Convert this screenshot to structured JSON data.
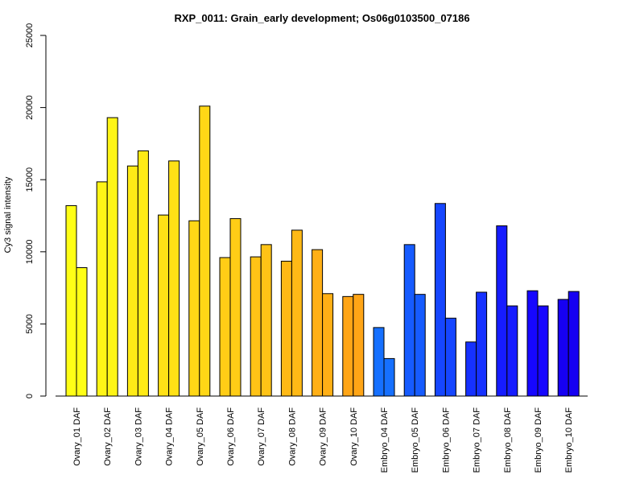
{
  "chart_data": {
    "type": "bar",
    "title": "RXP_0011: Grain_early development; Os06g0103500_07186",
    "xlabel": "",
    "ylabel": "Cy3 signal intensity",
    "ylim": [
      0,
      25000
    ],
    "yticks": [
      0,
      5000,
      10000,
      15000,
      20000,
      25000
    ],
    "grid": false,
    "categories": [
      "Ovary_01 DAF",
      "Ovary_02 DAF",
      "Ovary_03 DAF",
      "Ovary_04 DAF",
      "Ovary_05 DAF",
      "Ovary_06 DAF",
      "Ovary_07 DAF",
      "Ovary_08 DAF",
      "Ovary_09 DAF",
      "Ovary_10 DAF",
      "Embryo_04 DAF",
      "Embryo_05 DAF",
      "Embryo_06 DAF",
      "Embryo_07 DAF",
      "Embryo_08 DAF",
      "Embryo_09 DAF",
      "Embryo_10 DAF"
    ],
    "series": [
      {
        "values": [
          13200,
          14850,
          15950,
          12550,
          12150,
          9600,
          9650,
          9350,
          10150,
          6900,
          4750,
          10500,
          13350,
          3750,
          11800,
          7300,
          6700
        ]
      },
      {
        "values": [
          8900,
          19300,
          17000,
          16300,
          20100,
          12300,
          10500,
          11500,
          7100,
          7050,
          2600,
          7050,
          5400,
          7200,
          6250,
          6250,
          7250
        ]
      }
    ],
    "colors": [
      "#ffff16",
      "#fff516",
      "#ffeb16",
      "#ffe116",
      "#ffd716",
      "#ffcd16",
      "#ffc316",
      "#ffb916",
      "#ffaf16",
      "#ffa516",
      "#1670ff",
      "#165bff",
      "#1646ff",
      "#1631ff",
      "#161cff",
      "#1607ff",
      "#1600f2"
    ]
  }
}
